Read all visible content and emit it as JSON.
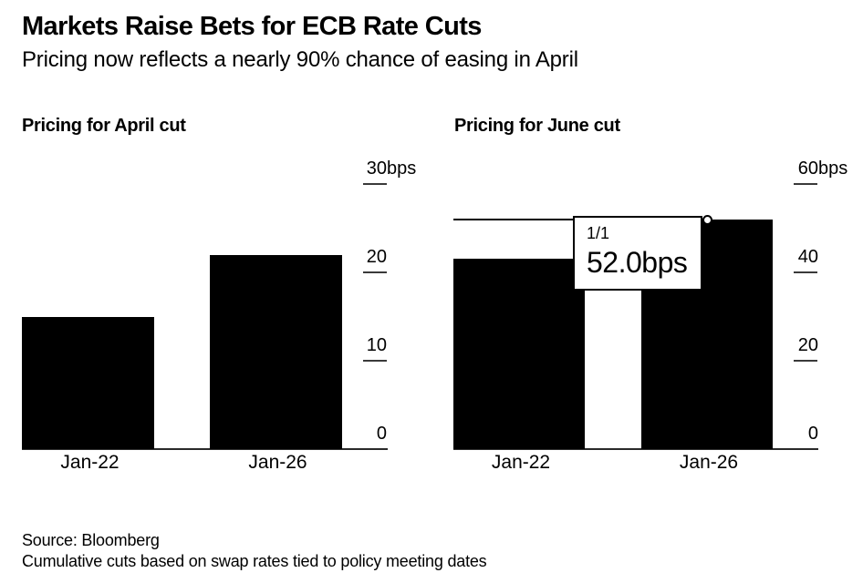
{
  "header": {
    "title": "Markets Raise Bets for ECB Rate Cuts",
    "subtitle": "Pricing now reflects a nearly 90% chance of easing in April"
  },
  "chart_data": [
    {
      "type": "bar",
      "title": "Pricing for April cut",
      "categories": [
        "Jan-22",
        "Jan-26"
      ],
      "values": [
        15,
        22
      ],
      "unit": "bps",
      "ylim": [
        0,
        30
      ],
      "yticks": [
        {
          "value": 0,
          "label": "0",
          "suffix": ""
        },
        {
          "value": 10,
          "label": "10",
          "suffix": ""
        },
        {
          "value": 20,
          "label": "20",
          "suffix": ""
        },
        {
          "value": 30,
          "label": "30",
          "suffix": "bps"
        }
      ],
      "grid": false,
      "legend": "none",
      "bar_color": "#000000"
    },
    {
      "type": "bar",
      "title": "Pricing for June cut",
      "categories": [
        "Jan-22",
        "Jan-26"
      ],
      "values": [
        43,
        52
      ],
      "unit": "bps",
      "ylim": [
        0,
        60
      ],
      "yticks": [
        {
          "value": 0,
          "label": "0",
          "suffix": ""
        },
        {
          "value": 20,
          "label": "20",
          "suffix": ""
        },
        {
          "value": 40,
          "label": "40",
          "suffix": ""
        },
        {
          "value": 60,
          "label": "60",
          "suffix": "bps"
        }
      ],
      "grid": false,
      "legend": "none",
      "bar_color": "#000000",
      "tooltip": {
        "series_label": "1/1",
        "value_label": "52.0bps",
        "target_category": "Jan-26",
        "target_value": 52
      }
    }
  ],
  "footer": {
    "source": "Source: Bloomberg",
    "note": "Cumulative cuts based on swap rates tied to policy meeting dates"
  },
  "colors": {
    "background": "#ffffff",
    "bar": "#000000",
    "axis": "#2a2a2a",
    "text": "#000000"
  }
}
